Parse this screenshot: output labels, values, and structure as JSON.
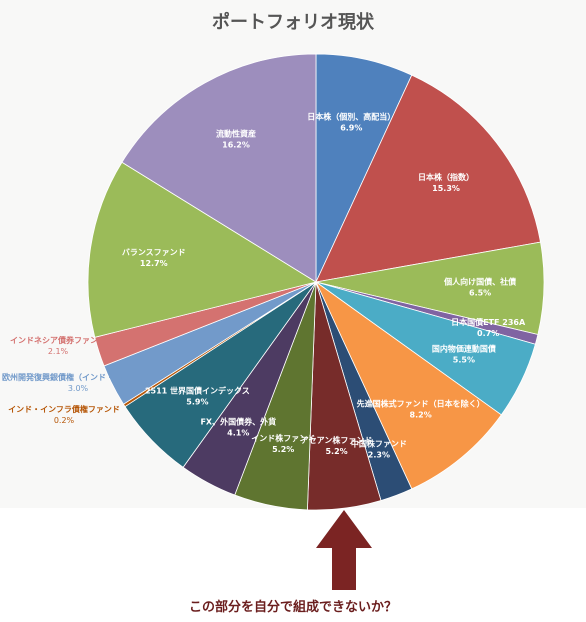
{
  "chart_data": {
    "type": "pie",
    "title": "ポートフォリオ現状",
    "slices": [
      {
        "label": "日本株（個別、高配当）",
        "value": 6.9,
        "value_label": "6.9%",
        "color": "#4f81bd",
        "label_pos": "inside"
      },
      {
        "label": "日本株（指数）",
        "value": 15.3,
        "value_label": "15.3%",
        "color": "#c0504d",
        "label_pos": "inside"
      },
      {
        "label": "個人向け国債、社債",
        "value": 6.5,
        "value_label": "6.5%",
        "color": "#9bbb59",
        "label_pos": "inside"
      },
      {
        "label": "日本国債ETF 236A",
        "value": 0.7,
        "value_label": "0.7%",
        "color": "#8064a2",
        "label_pos": "inside"
      },
      {
        "label": "国内物価連動国債",
        "value": 5.5,
        "value_label": "5.5%",
        "color": "#4bacc6",
        "label_pos": "inside"
      },
      {
        "label": "先進国株式ファンド（日本を除く）",
        "value": 8.2,
        "value_label": "8.2%",
        "color": "#f79646",
        "label_pos": "inside"
      },
      {
        "label": "中国株ファンド",
        "value": 2.3,
        "value_label": "2.3%",
        "color": "#2c4d75",
        "label_pos": "inside"
      },
      {
        "label": "アセアン株ファンド",
        "value": 5.2,
        "value_label": "5.2%",
        "color": "#772c2a",
        "label_pos": "inside"
      },
      {
        "label": "インド株ファンド",
        "value": 5.2,
        "value_label": "5.2%",
        "color": "#5f7530",
        "label_pos": "inside"
      },
      {
        "label": "FX、外国債券、外貨",
        "value": 4.1,
        "value_label": "4.1%",
        "color": "#4d3b62",
        "label_pos": "inside"
      },
      {
        "label": "2511 世界国債インデックス",
        "value": 5.9,
        "value_label": "5.9%",
        "color": "#276a7c",
        "label_pos": "inside"
      },
      {
        "label": "インド・インフラ債権ファンド",
        "value": 0.2,
        "value_label": "0.2%",
        "color": "#b65708",
        "label_pos": "outside"
      },
      {
        "label": "欧州開発復興銀債権（インド・ルピー建）",
        "value": 3.0,
        "value_label": "3.0%",
        "color": "#729aca",
        "label_pos": "outside"
      },
      {
        "label": "インドネシア債券ファンド",
        "value": 2.1,
        "value_label": "2.1%",
        "color": "#d47270",
        "label_pos": "outside"
      },
      {
        "label": "バランスファンド",
        "value": 12.7,
        "value_label": "12.7%",
        "color": "#9bbb59",
        "label_pos": "inside"
      },
      {
        "label": "流動性資産",
        "value": 16.2,
        "value_label": "16.2%",
        "color": "#9d8ebd",
        "label_pos": "inside"
      }
    ],
    "start_angle_deg": 0,
    "direction": "clockwise",
    "legend": "none"
  },
  "annotation": {
    "arrow_color": "#7b2423",
    "question": "この部分を自分で組成できないか？"
  }
}
